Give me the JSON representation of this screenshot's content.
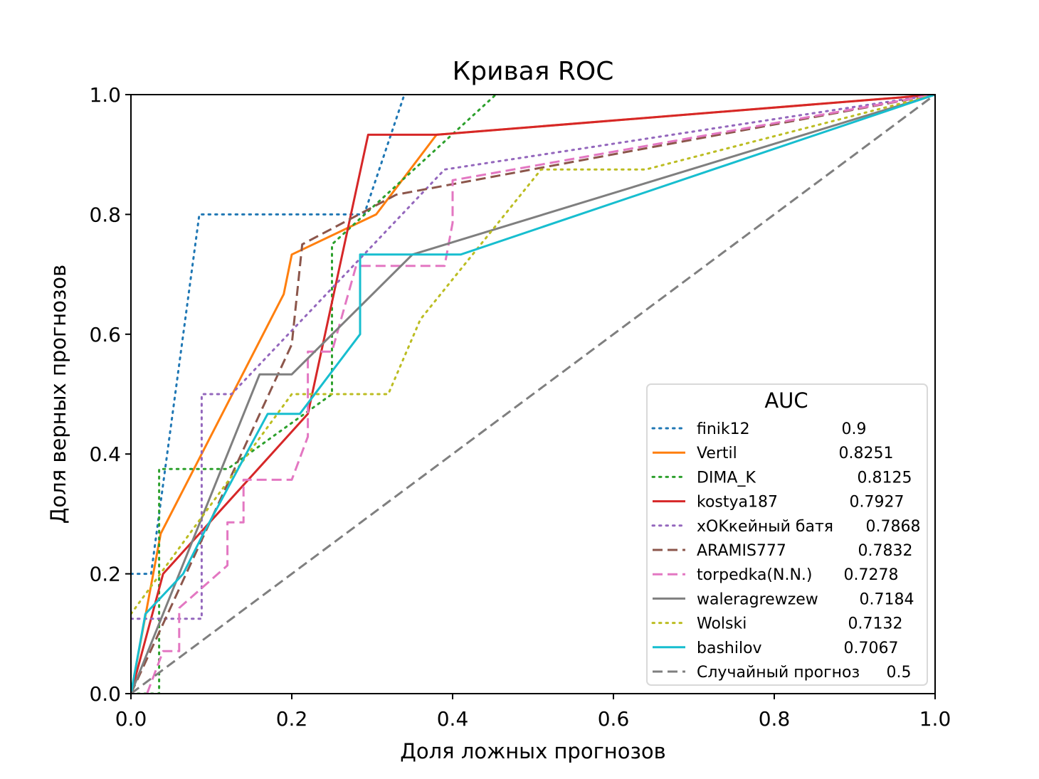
{
  "chart_data": {
    "type": "line",
    "title": "Кривая ROC",
    "xlabel": "Доля ложных прогнозов",
    "ylabel": "Доля верных прогнозов",
    "xlim": [
      0.0,
      1.0
    ],
    "ylim": [
      0.0,
      1.0
    ],
    "xticks": [
      "0.0",
      "0.2",
      "0.4",
      "0.6",
      "0.8",
      "1.0"
    ],
    "yticks": [
      "0.0",
      "0.2",
      "0.4",
      "0.6",
      "0.8",
      "1.0"
    ],
    "grid": false,
    "legend": {
      "title": "AUC",
      "placement": "lower-right"
    },
    "series": [
      {
        "name": "finik12",
        "auc": "0.9",
        "color": "#1f77b4",
        "style": "dotted",
        "x": [
          0.0,
          0.025,
          0.085,
          0.29,
          0.34,
          0.4
        ],
        "y": [
          0.2,
          0.2,
          0.8,
          0.8,
          1.0,
          1.24
        ]
      },
      {
        "name": "Vertil",
        "auc": "0.8251",
        "color": "#ff7f0e",
        "style": "solid",
        "x": [
          0.0,
          0.037,
          0.19,
          0.2,
          0.305,
          0.38,
          1.0
        ],
        "y": [
          0.0,
          0.267,
          0.667,
          0.733,
          0.8,
          0.933,
          1.0
        ]
      },
      {
        "name": "DIMA_K",
        "auc": "0.8125",
        "color": "#2ca02c",
        "style": "dotted",
        "x": [
          0.0,
          0.035,
          0.035,
          0.12,
          0.25,
          0.25,
          0.47
        ],
        "y": [
          0.0,
          0.0,
          0.375,
          0.375,
          0.5,
          0.75,
          1.02
        ]
      },
      {
        "name": "kostya187",
        "auc": "0.7927",
        "color": "#d62728",
        "style": "solid",
        "x": [
          0.0,
          0.04,
          0.22,
          0.295,
          0.38,
          1.0
        ],
        "y": [
          0.0,
          0.2,
          0.467,
          0.933,
          0.933,
          1.0
        ]
      },
      {
        "name": "xOKкейный батя",
        "auc": "0.7868",
        "color": "#9467bd",
        "style": "dotted",
        "x": [
          0.0,
          0.088,
          0.088,
          0.125,
          0.39,
          1.0
        ],
        "y": [
          0.125,
          0.125,
          0.5,
          0.5,
          0.875,
          1.0
        ]
      },
      {
        "name": "ARAMIS777",
        "auc": "0.7832",
        "color": "#8c564b",
        "style": "dashed",
        "x": [
          0.0,
          0.2,
          0.213,
          0.33,
          1.0
        ],
        "y": [
          0.0,
          0.583,
          0.75,
          0.833,
          1.0
        ]
      },
      {
        "name": "torpedka(N.N.)",
        "auc": "0.7278",
        "color": "#e377c2",
        "style": "dashed",
        "x": [
          0.02,
          0.04,
          0.06,
          0.06,
          0.12,
          0.12,
          0.14,
          0.14,
          0.2,
          0.22,
          0.22,
          0.25,
          0.28,
          0.39,
          0.4,
          0.4,
          1.0
        ],
        "y": [
          0.0,
          0.071,
          0.071,
          0.143,
          0.214,
          0.286,
          0.286,
          0.357,
          0.357,
          0.429,
          0.571,
          0.571,
          0.714,
          0.714,
          0.786,
          0.857,
          1.0
        ]
      },
      {
        "name": "waleragrewzew",
        "auc": "0.7184",
        "color": "#7f7f7f",
        "style": "solid",
        "x": [
          0.0,
          0.16,
          0.2,
          0.35,
          1.0
        ],
        "y": [
          0.0,
          0.533,
          0.533,
          0.733,
          1.0
        ]
      },
      {
        "name": "Wolski",
        "auc": "0.7132",
        "color": "#bcbd22",
        "style": "dotted",
        "x": [
          0.0,
          0.2,
          0.32,
          0.36,
          0.51,
          0.64,
          1.0
        ],
        "y": [
          0.133,
          0.5,
          0.5,
          0.625,
          0.875,
          0.875,
          1.0
        ]
      },
      {
        "name": "bashilov",
        "auc": "0.7067",
        "color": "#17becf",
        "style": "solid",
        "x": [
          0.0,
          0.018,
          0.065,
          0.09,
          0.17,
          0.21,
          0.285,
          0.285,
          0.41,
          1.0
        ],
        "y": [
          0.0,
          0.133,
          0.2,
          0.267,
          0.467,
          0.467,
          0.6,
          0.733,
          0.733,
          1.0
        ]
      },
      {
        "name": "Случайный прогноз",
        "auc": "0.5",
        "color": "#7f7f7f",
        "style": "dashed",
        "x": [
          0.0,
          1.0
        ],
        "y": [
          0.0,
          1.0
        ]
      }
    ]
  }
}
